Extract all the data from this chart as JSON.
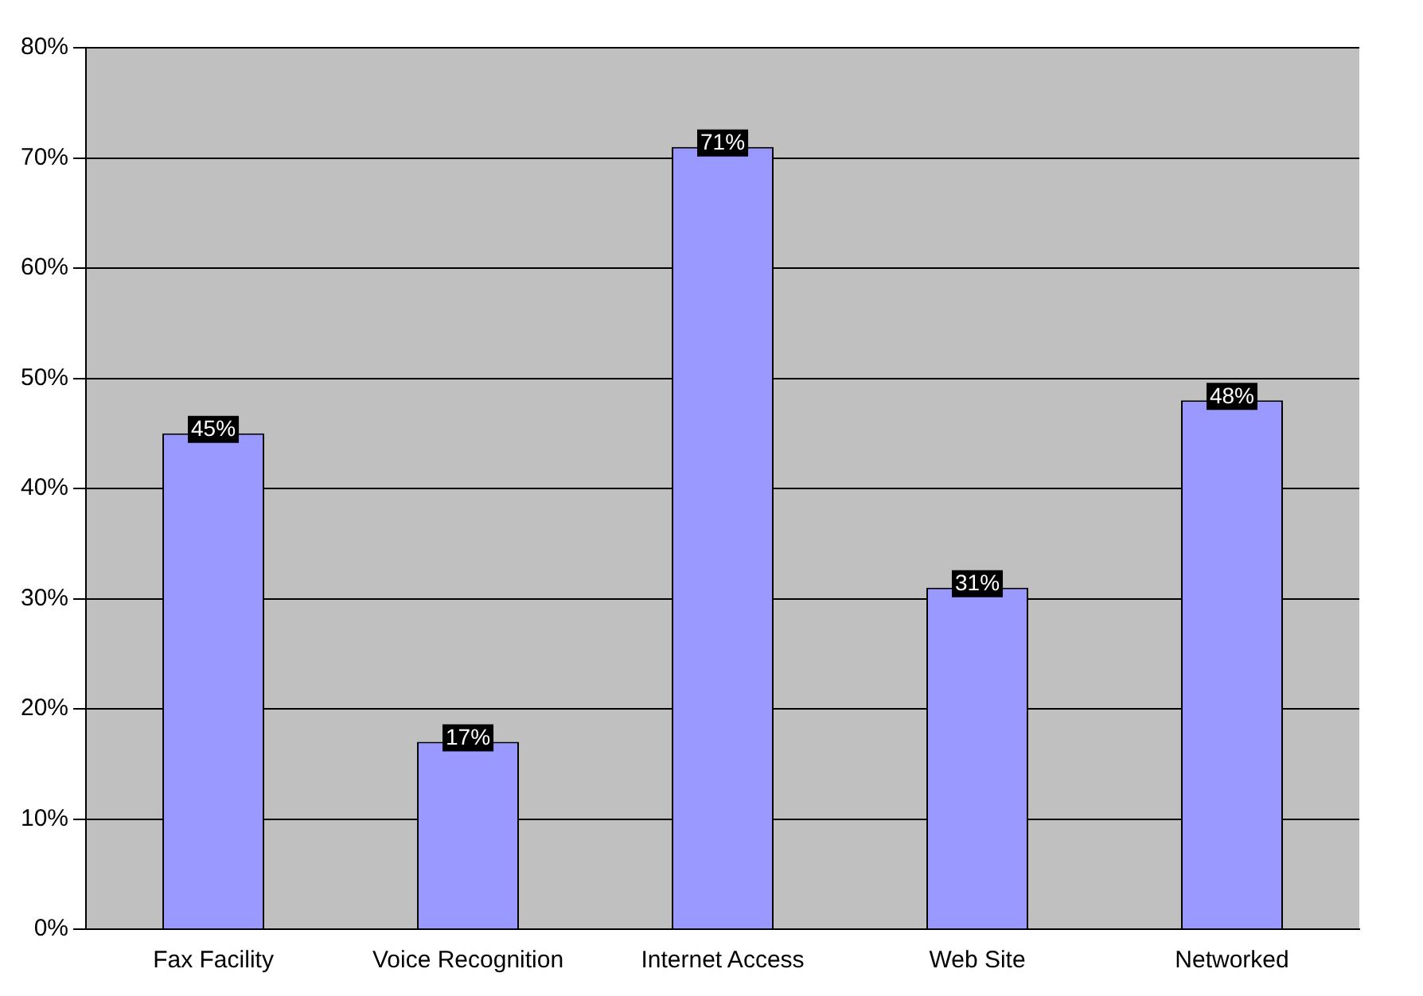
{
  "chart_data": {
    "type": "bar",
    "categories": [
      "Fax Facility",
      "Voice Recognition",
      "Internet Access",
      "Web Site",
      "Networked"
    ],
    "values": [
      45,
      17,
      71,
      31,
      48
    ],
    "value_labels": [
      "45%",
      "17%",
      "71%",
      "31%",
      "48%"
    ],
    "color": "#9999ff",
    "ylim": [
      0,
      80
    ],
    "yticks": [
      {
        "value": 0,
        "label": "0%"
      },
      {
        "value": 10,
        "label": "10%"
      },
      {
        "value": 20,
        "label": "20%"
      },
      {
        "value": 30,
        "label": "30%"
      },
      {
        "value": 40,
        "label": "40%"
      },
      {
        "value": 50,
        "label": "50%"
      },
      {
        "value": 60,
        "label": "60%"
      },
      {
        "value": 70,
        "label": "70%"
      },
      {
        "value": 80,
        "label": "80%"
      }
    ],
    "grid": "y",
    "legend": false
  }
}
